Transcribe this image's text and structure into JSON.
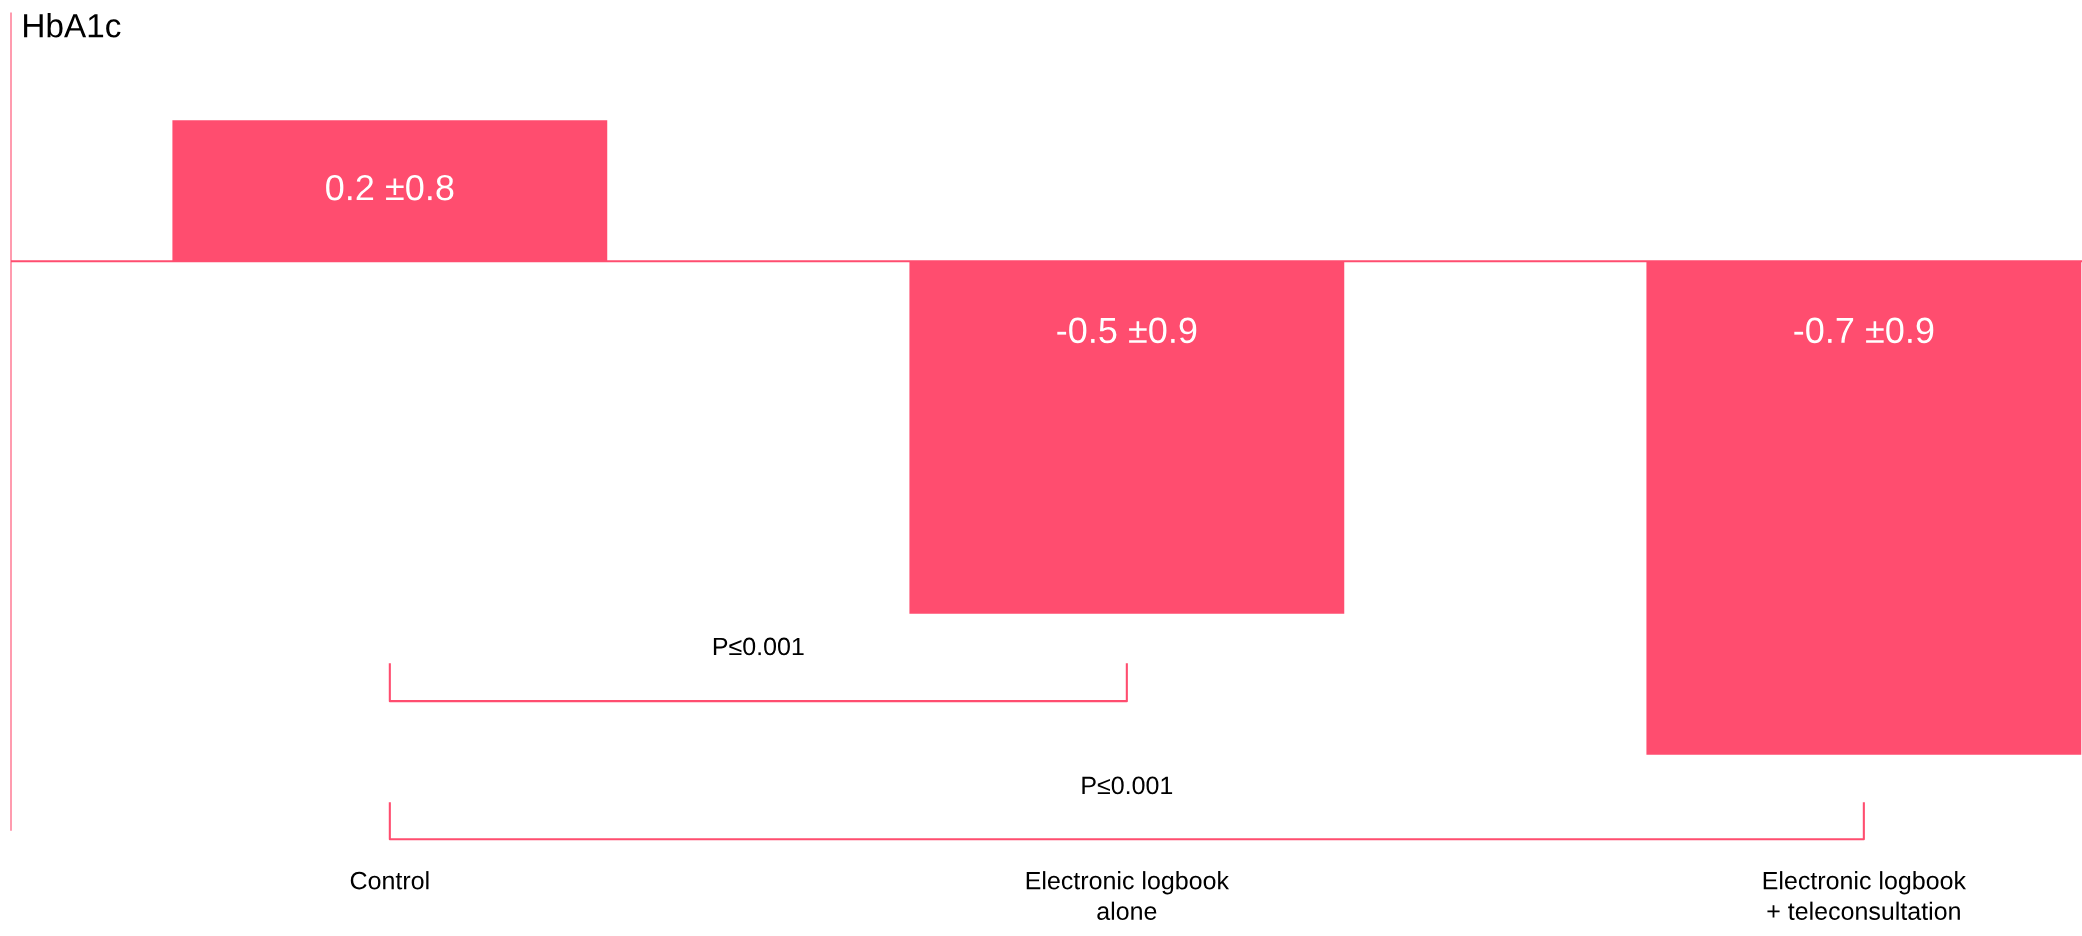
{
  "chart_data": {
    "type": "bar",
    "ylabel": "HbA1c",
    "categories": [
      "Control",
      "Electronic logbook\nalone",
      "Electronic logbook\n+ teleconsultation"
    ],
    "values": [
      0.2,
      -0.5,
      -0.7
    ],
    "value_labels": [
      "0.2 ±0.8",
      "-0.5 ±0.9",
      "-0.7 ±0.9"
    ],
    "color": "#ff4d6f",
    "annotations": [
      "P≤0.001",
      "P≤0.001"
    ],
    "ref_lines": [
      {
        "axis": "y",
        "value": 0
      }
    ],
    "legend": false
  }
}
